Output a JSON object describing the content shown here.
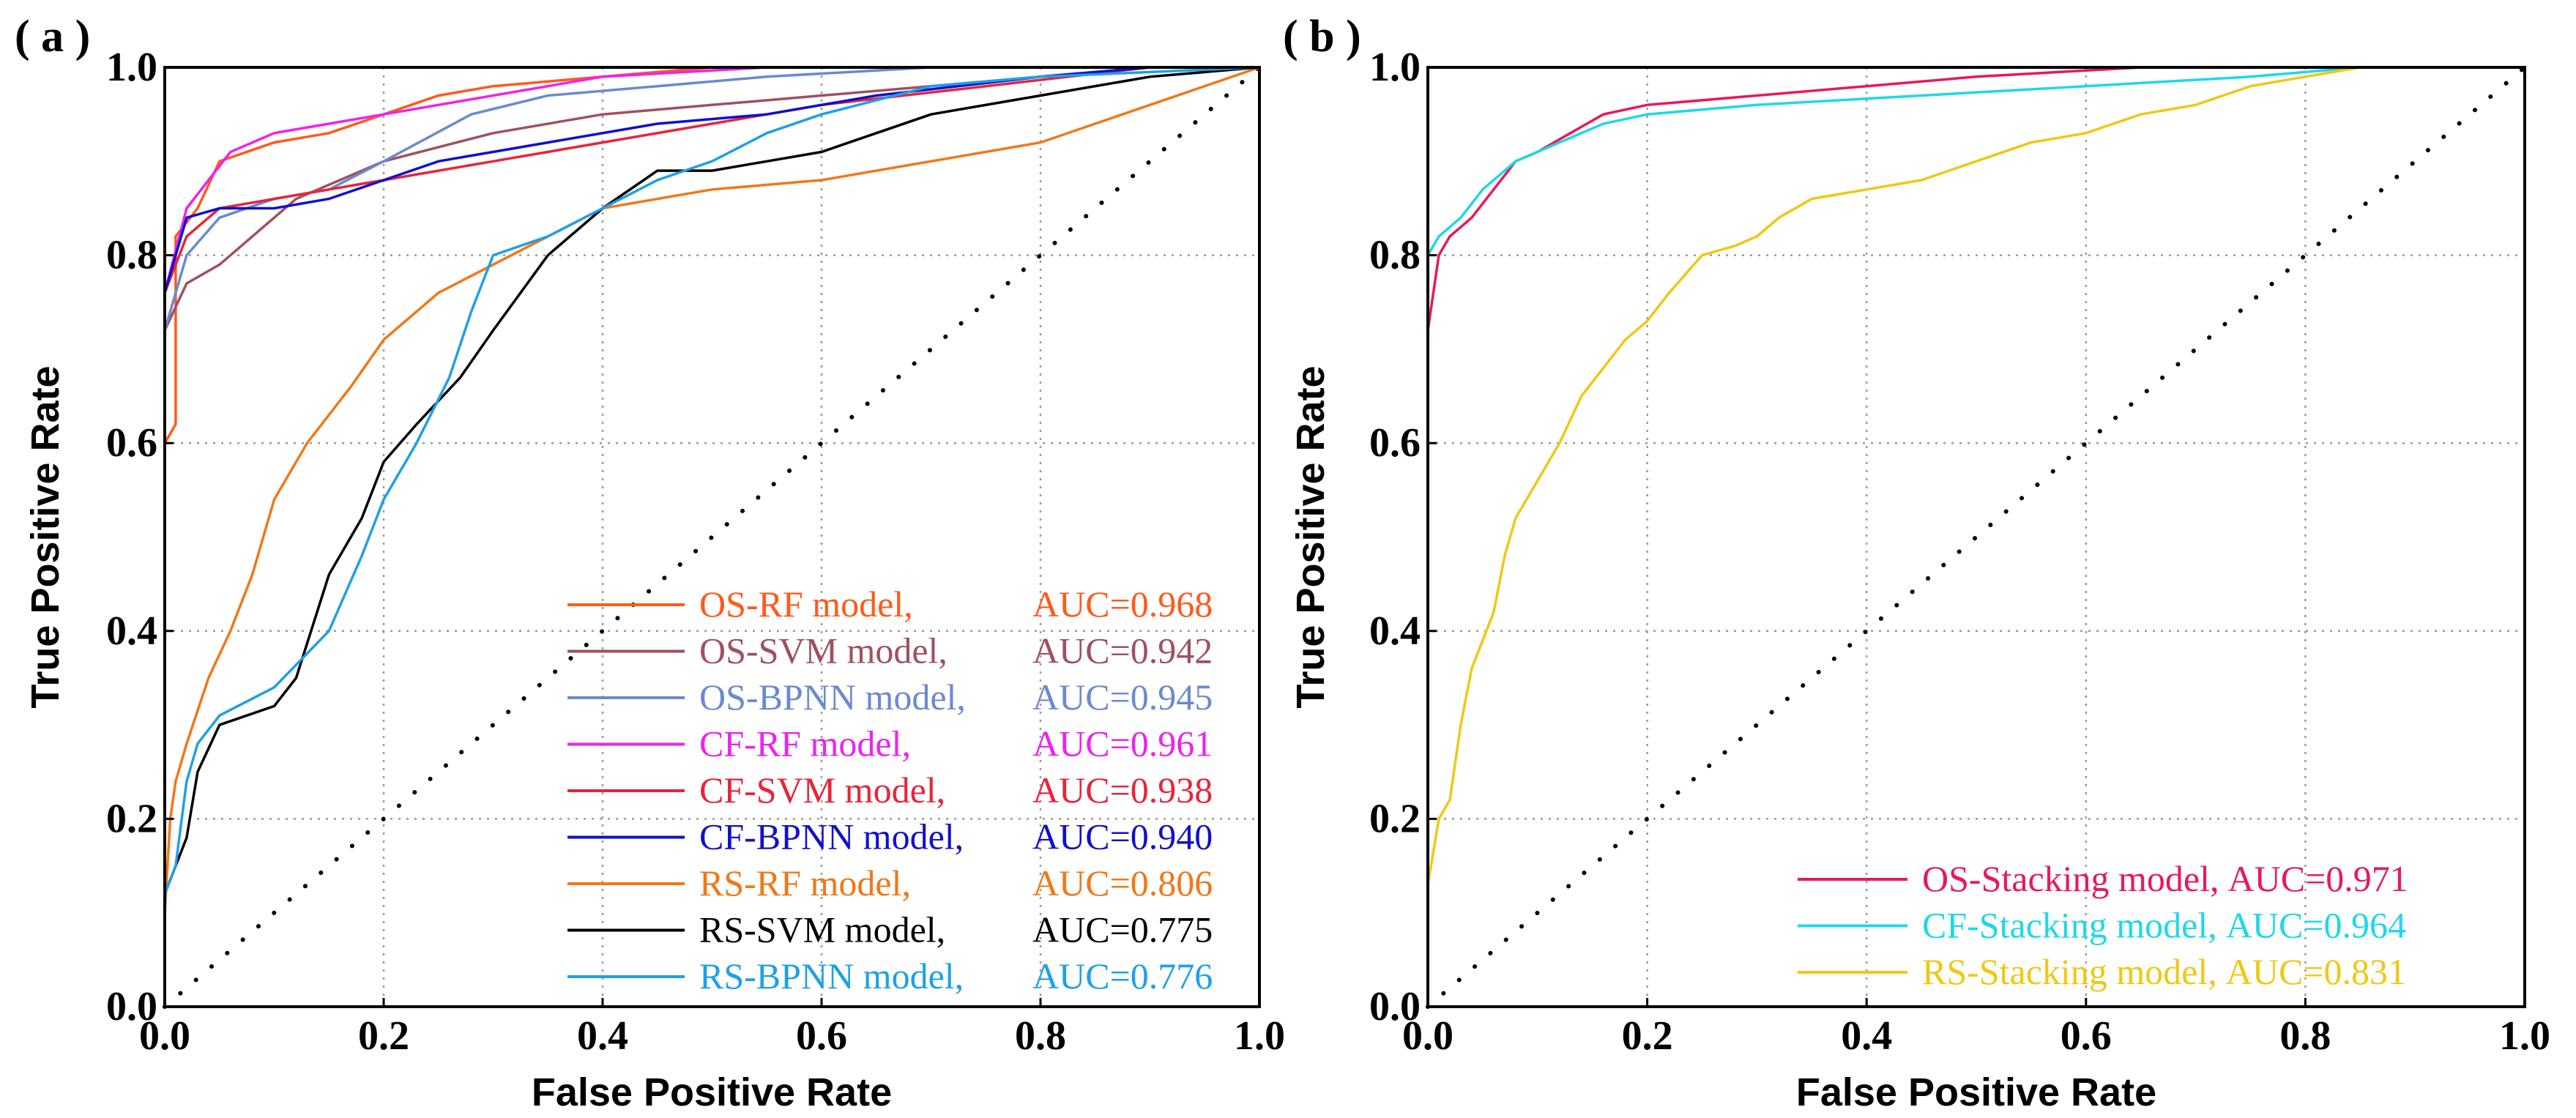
{
  "chart_data": [
    {
      "type": "line",
      "panel_label": "( a )",
      "xlabel": "False Positive Rate",
      "ylabel": "True Positive Rate",
      "xlim": [
        0,
        1
      ],
      "ylim": [
        0,
        1
      ],
      "xticks": [
        "0.0",
        "0.2",
        "0.4",
        "0.6",
        "0.8",
        "1.0"
      ],
      "yticks": [
        "0.0",
        "0.2",
        "0.4",
        "0.6",
        "0.8",
        "1.0"
      ],
      "grid": true,
      "legend_position": "bottom-right",
      "diagonal": true,
      "series": [
        {
          "name": "OS-RF model,",
          "auc_label": "AUC=0.968",
          "color": "#ff5a1a",
          "points": [
            [
              0,
              0
            ],
            [
              0,
              0.6
            ],
            [
              0.01,
              0.62
            ],
            [
              0.01,
              0.82
            ],
            [
              0.03,
              0.85
            ],
            [
              0.05,
              0.9
            ],
            [
              0.1,
              0.92
            ],
            [
              0.15,
              0.93
            ],
            [
              0.2,
              0.95
            ],
            [
              0.25,
              0.97
            ],
            [
              0.3,
              0.98
            ],
            [
              0.4,
              0.99
            ],
            [
              0.5,
              1.0
            ],
            [
              1,
              1
            ]
          ]
        },
        {
          "name": "OS-SVM model,",
          "auc_label": "AUC=0.942",
          "color": "#a05060",
          "points": [
            [
              0,
              0
            ],
            [
              0,
              0.72
            ],
            [
              0.02,
              0.77
            ],
            [
              0.05,
              0.79
            ],
            [
              0.08,
              0.82
            ],
            [
              0.12,
              0.86
            ],
            [
              0.2,
              0.9
            ],
            [
              0.3,
              0.93
            ],
            [
              0.4,
              0.95
            ],
            [
              0.5,
              0.96
            ],
            [
              0.6,
              0.97
            ],
            [
              0.7,
              0.98
            ],
            [
              0.8,
              0.99
            ],
            [
              0.9,
              1.0
            ],
            [
              1,
              1
            ]
          ]
        },
        {
          "name": "OS-BPNN model,",
          "auc_label": "AUC=0.945",
          "color": "#6a8ad0",
          "points": [
            [
              0,
              0
            ],
            [
              0,
              0.72
            ],
            [
              0.02,
              0.8
            ],
            [
              0.05,
              0.84
            ],
            [
              0.1,
              0.86
            ],
            [
              0.15,
              0.87
            ],
            [
              0.2,
              0.9
            ],
            [
              0.28,
              0.95
            ],
            [
              0.35,
              0.97
            ],
            [
              0.45,
              0.98
            ],
            [
              0.55,
              0.99
            ],
            [
              0.7,
              1.0
            ],
            [
              1,
              1
            ]
          ]
        },
        {
          "name": "CF-RF model,",
          "auc_label": "AUC=0.961",
          "color": "#ee22ee",
          "points": [
            [
              0,
              0
            ],
            [
              0,
              0.76
            ],
            [
              0.02,
              0.85
            ],
            [
              0.04,
              0.88
            ],
            [
              0.06,
              0.91
            ],
            [
              0.1,
              0.93
            ],
            [
              0.15,
              0.94
            ],
            [
              0.2,
              0.95
            ],
            [
              0.3,
              0.97
            ],
            [
              0.4,
              0.99
            ],
            [
              0.55,
              1.0
            ],
            [
              1,
              1
            ]
          ]
        },
        {
          "name": "CF-SVM model,",
          "auc_label": "AUC=0.938",
          "color": "#e8243a",
          "points": [
            [
              0,
              0
            ],
            [
              0,
              0.76
            ],
            [
              0.02,
              0.82
            ],
            [
              0.05,
              0.85
            ],
            [
              0.1,
              0.86
            ],
            [
              0.15,
              0.87
            ],
            [
              0.2,
              0.88
            ],
            [
              0.3,
              0.9
            ],
            [
              0.4,
              0.92
            ],
            [
              0.5,
              0.94
            ],
            [
              0.6,
              0.96
            ],
            [
              0.75,
              0.98
            ],
            [
              0.9,
              1.0
            ],
            [
              1,
              1
            ]
          ]
        },
        {
          "name": "CF-BPNN model,",
          "auc_label": "AUC=0.940",
          "color": "#1010cc",
          "points": [
            [
              0,
              0
            ],
            [
              0,
              0.76
            ],
            [
              0.02,
              0.84
            ],
            [
              0.05,
              0.85
            ],
            [
              0.1,
              0.85
            ],
            [
              0.15,
              0.86
            ],
            [
              0.2,
              0.88
            ],
            [
              0.25,
              0.9
            ],
            [
              0.35,
              0.92
            ],
            [
              0.45,
              0.94
            ],
            [
              0.55,
              0.95
            ],
            [
              0.65,
              0.97
            ],
            [
              0.8,
              0.99
            ],
            [
              0.9,
              1.0
            ],
            [
              1,
              1
            ]
          ]
        },
        {
          "name": "RS-RF model,",
          "auc_label": "AUC=0.806",
          "color": "#f07818",
          "points": [
            [
              0,
              0
            ],
            [
              0,
              0.1
            ],
            [
              0.005,
              0.2
            ],
            [
              0.01,
              0.24
            ],
            [
              0.02,
              0.28
            ],
            [
              0.04,
              0.35
            ],
            [
              0.06,
              0.4
            ],
            [
              0.08,
              0.46
            ],
            [
              0.1,
              0.54
            ],
            [
              0.13,
              0.6
            ],
            [
              0.17,
              0.66
            ],
            [
              0.2,
              0.71
            ],
            [
              0.25,
              0.76
            ],
            [
              0.3,
              0.79
            ],
            [
              0.35,
              0.82
            ],
            [
              0.4,
              0.85
            ],
            [
              0.5,
              0.87
            ],
            [
              0.6,
              0.88
            ],
            [
              0.7,
              0.9
            ],
            [
              0.8,
              0.92
            ],
            [
              0.9,
              0.96
            ],
            [
              1,
              1
            ]
          ]
        },
        {
          "name": "RS-SVM model,",
          "auc_label": "AUC=0.775",
          "color": "#000000",
          "points": [
            [
              0,
              0
            ],
            [
              0,
              0.12
            ],
            [
              0.02,
              0.18
            ],
            [
              0.03,
              0.25
            ],
            [
              0.05,
              0.3
            ],
            [
              0.1,
              0.32
            ],
            [
              0.12,
              0.35
            ],
            [
              0.15,
              0.46
            ],
            [
              0.18,
              0.52
            ],
            [
              0.2,
              0.58
            ],
            [
              0.23,
              0.62
            ],
            [
              0.27,
              0.67
            ],
            [
              0.3,
              0.72
            ],
            [
              0.35,
              0.8
            ],
            [
              0.4,
              0.85
            ],
            [
              0.45,
              0.89
            ],
            [
              0.5,
              0.89
            ],
            [
              0.55,
              0.9
            ],
            [
              0.6,
              0.91
            ],
            [
              0.65,
              0.93
            ],
            [
              0.7,
              0.95
            ],
            [
              0.8,
              0.97
            ],
            [
              0.9,
              0.99
            ],
            [
              1,
              1
            ]
          ]
        },
        {
          "name": "RS-BPNN model,",
          "auc_label": "AUC=0.776",
          "color": "#1ea0e8",
          "points": [
            [
              0,
              0
            ],
            [
              0,
              0.12
            ],
            [
              0.01,
              0.15
            ],
            [
              0.02,
              0.24
            ],
            [
              0.03,
              0.28
            ],
            [
              0.05,
              0.31
            ],
            [
              0.1,
              0.34
            ],
            [
              0.15,
              0.4
            ],
            [
              0.18,
              0.48
            ],
            [
              0.2,
              0.54
            ],
            [
              0.23,
              0.6
            ],
            [
              0.26,
              0.67
            ],
            [
              0.28,
              0.74
            ],
            [
              0.3,
              0.8
            ],
            [
              0.35,
              0.82
            ],
            [
              0.4,
              0.85
            ],
            [
              0.45,
              0.88
            ],
            [
              0.5,
              0.9
            ],
            [
              0.55,
              0.93
            ],
            [
              0.6,
              0.95
            ],
            [
              0.7,
              0.98
            ],
            [
              0.8,
              0.99
            ],
            [
              1,
              1
            ]
          ]
        }
      ]
    },
    {
      "type": "line",
      "panel_label": "( b )",
      "xlabel": "False Positive Rate",
      "ylabel": "True Positive Rate",
      "xlim": [
        0,
        1
      ],
      "ylim": [
        0,
        1
      ],
      "xticks": [
        "0.0",
        "0.2",
        "0.4",
        "0.6",
        "0.8",
        "1.0"
      ],
      "yticks": [
        "0.0",
        "0.2",
        "0.4",
        "0.6",
        "0.8",
        "1.0"
      ],
      "grid": true,
      "legend_position": "bottom-right",
      "diagonal": true,
      "series": [
        {
          "name": "OS-Stacking model,",
          "auc_label": "AUC=0.971",
          "color": "#e8185e",
          "points": [
            [
              0,
              0
            ],
            [
              0,
              0.72
            ],
            [
              0.01,
              0.8
            ],
            [
              0.02,
              0.82
            ],
            [
              0.04,
              0.84
            ],
            [
              0.06,
              0.87
            ],
            [
              0.08,
              0.9
            ],
            [
              0.1,
              0.91
            ],
            [
              0.13,
              0.93
            ],
            [
              0.16,
              0.95
            ],
            [
              0.2,
              0.96
            ],
            [
              0.3,
              0.97
            ],
            [
              0.4,
              0.98
            ],
            [
              0.5,
              0.99
            ],
            [
              0.65,
              1.0
            ],
            [
              1,
              1
            ]
          ]
        },
        {
          "name": "CF-Stacking model,",
          "auc_label": "AUC=0.964",
          "color": "#1ed8e8",
          "points": [
            [
              0,
              0
            ],
            [
              0,
              0.8
            ],
            [
              0.01,
              0.82
            ],
            [
              0.03,
              0.84
            ],
            [
              0.05,
              0.87
            ],
            [
              0.08,
              0.9
            ],
            [
              0.12,
              0.92
            ],
            [
              0.16,
              0.94
            ],
            [
              0.2,
              0.95
            ],
            [
              0.3,
              0.96
            ],
            [
              0.45,
              0.97
            ],
            [
              0.6,
              0.98
            ],
            [
              0.75,
              0.99
            ],
            [
              0.85,
              1.0
            ],
            [
              1,
              1
            ]
          ]
        },
        {
          "name": "RS-Stacking model,",
          "auc_label": "AUC=0.831",
          "color": "#f0c814",
          "points": [
            [
              0,
              0
            ],
            [
              0,
              0.13
            ],
            [
              0.01,
              0.2
            ],
            [
              0.02,
              0.22
            ],
            [
              0.03,
              0.3
            ],
            [
              0.04,
              0.36
            ],
            [
              0.05,
              0.39
            ],
            [
              0.06,
              0.42
            ],
            [
              0.07,
              0.48
            ],
            [
              0.08,
              0.52
            ],
            [
              0.1,
              0.56
            ],
            [
              0.12,
              0.6
            ],
            [
              0.14,
              0.65
            ],
            [
              0.16,
              0.68
            ],
            [
              0.18,
              0.71
            ],
            [
              0.2,
              0.73
            ],
            [
              0.22,
              0.76
            ],
            [
              0.25,
              0.8
            ],
            [
              0.28,
              0.81
            ],
            [
              0.3,
              0.82
            ],
            [
              0.32,
              0.84
            ],
            [
              0.35,
              0.86
            ],
            [
              0.4,
              0.87
            ],
            [
              0.45,
              0.88
            ],
            [
              0.5,
              0.9
            ],
            [
              0.55,
              0.92
            ],
            [
              0.6,
              0.93
            ],
            [
              0.65,
              0.95
            ],
            [
              0.7,
              0.96
            ],
            [
              0.75,
              0.98
            ],
            [
              0.8,
              0.99
            ],
            [
              0.85,
              1.0
            ],
            [
              1,
              1
            ]
          ]
        }
      ]
    }
  ]
}
